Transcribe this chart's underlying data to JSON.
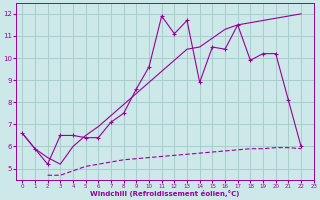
{
  "bg_color": "#cce8e8",
  "grid_color": "#aacccc",
  "line_color": "#990099",
  "line1_x": [
    0,
    1,
    2,
    3,
    4,
    5,
    6,
    7,
    8,
    9,
    10,
    11,
    12,
    13,
    14,
    15,
    16,
    17,
    18,
    19,
    20,
    21,
    22
  ],
  "line1_y": [
    6.6,
    5.9,
    5.2,
    6.5,
    6.5,
    6.4,
    6.4,
    7.1,
    7.5,
    8.6,
    9.6,
    11.9,
    11.1,
    11.7,
    8.9,
    10.5,
    10.4,
    11.5,
    9.9,
    10.2,
    10.2,
    8.1,
    6.0
  ],
  "line2_x": [
    0,
    1,
    2,
    3,
    4,
    5,
    6,
    7,
    8,
    9,
    10,
    11,
    12,
    13,
    14,
    15,
    16,
    17,
    18,
    19,
    20,
    21,
    22
  ],
  "line2_y": [
    6.6,
    5.9,
    5.5,
    5.2,
    6.0,
    6.5,
    6.9,
    7.4,
    7.9,
    8.4,
    8.9,
    9.4,
    9.9,
    10.4,
    10.5,
    10.9,
    11.3,
    11.5,
    11.6,
    11.7,
    11.8,
    11.9,
    12.0
  ],
  "line3_x": [
    2,
    3,
    4,
    5,
    6,
    7,
    8,
    9,
    10,
    11,
    12,
    13,
    14,
    15,
    16,
    17,
    18,
    19,
    20,
    21,
    22
  ],
  "line3_y": [
    4.7,
    4.7,
    4.9,
    5.1,
    5.2,
    5.3,
    5.4,
    5.45,
    5.5,
    5.55,
    5.6,
    5.65,
    5.7,
    5.75,
    5.8,
    5.85,
    5.9,
    5.9,
    5.95,
    5.95,
    5.9
  ],
  "xlabel": "Windchill (Refroidissement éolien,°C)",
  "xlim": [
    -0.5,
    23
  ],
  "ylim": [
    4.5,
    12.5
  ],
  "xticks": [
    0,
    1,
    2,
    3,
    4,
    5,
    6,
    7,
    8,
    9,
    10,
    11,
    12,
    13,
    14,
    15,
    16,
    17,
    18,
    19,
    20,
    21,
    22,
    23
  ],
  "yticks": [
    5,
    6,
    7,
    8,
    9,
    10,
    11,
    12
  ]
}
